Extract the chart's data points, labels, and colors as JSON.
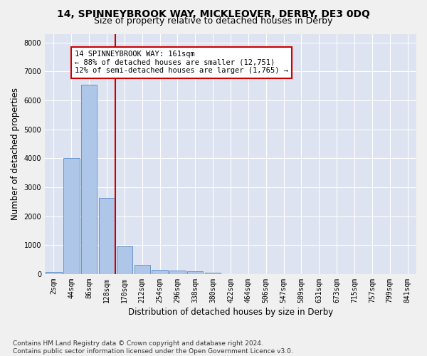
{
  "title": "14, SPINNEYBROOK WAY, MICKLEOVER, DERBY, DE3 0DQ",
  "subtitle": "Size of property relative to detached houses in Derby",
  "xlabel": "Distribution of detached houses by size in Derby",
  "ylabel": "Number of detached properties",
  "footnote": "Contains HM Land Registry data © Crown copyright and database right 2024.\nContains public sector information licensed under the Open Government Licence v3.0.",
  "bar_labels": [
    "2sqm",
    "44sqm",
    "86sqm",
    "128sqm",
    "170sqm",
    "212sqm",
    "254sqm",
    "296sqm",
    "338sqm",
    "380sqm",
    "422sqm",
    "464sqm",
    "506sqm",
    "547sqm",
    "589sqm",
    "631sqm",
    "673sqm",
    "715sqm",
    "757sqm",
    "799sqm",
    "841sqm"
  ],
  "bar_values": [
    80,
    4000,
    6550,
    2630,
    950,
    310,
    135,
    115,
    90,
    60,
    0,
    0,
    0,
    0,
    0,
    0,
    0,
    0,
    0,
    0,
    0
  ],
  "bar_color": "#aec6e8",
  "bar_edge_color": "#5b8cc8",
  "vline_color": "#cc0000",
  "vline_x_index": 3.5,
  "annotation_text": "14 SPINNEYBROOK WAY: 161sqm\n← 88% of detached houses are smaller (12,751)\n12% of semi-detached houses are larger (1,765) →",
  "annotation_box_color": "#ffffff",
  "annotation_box_edge": "#cc0000",
  "ylim": [
    0,
    8300
  ],
  "yticks": [
    0,
    1000,
    2000,
    3000,
    4000,
    5000,
    6000,
    7000,
    8000
  ],
  "background_color": "#dde3f0",
  "grid_color": "#ffffff",
  "fig_bg_color": "#f0f0f0",
  "title_fontsize": 10,
  "subtitle_fontsize": 9,
  "axis_label_fontsize": 8.5,
  "tick_fontsize": 7,
  "annotation_fontsize": 7.5,
  "footnote_fontsize": 6.5
}
